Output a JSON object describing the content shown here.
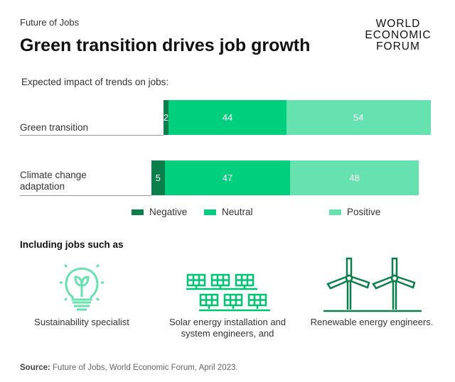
{
  "header": {
    "kicker": "Future of Jobs",
    "title": "Green transition drives job growth",
    "logo": [
      "WORLD",
      "ECONOMIC",
      "FORUM"
    ]
  },
  "chart_data": {
    "type": "bar",
    "orientation": "horizontal-stacked-diverging",
    "subtitle": "Expected impact of trends on jobs:",
    "categories": [
      "Green transition",
      "Climate change adaptation"
    ],
    "series": [
      {
        "name": "Negative",
        "values": [
          2,
          5
        ],
        "color": "#0a7f4c"
      },
      {
        "name": "Neutral",
        "values": [
          44,
          47
        ],
        "color": "#00d07e"
      },
      {
        "name": "Positive",
        "values": [
          54,
          48
        ],
        "color": "#66e2b0"
      }
    ],
    "legend_placement": "bottom",
    "grid": false
  },
  "jobs": {
    "heading": "Including jobs such as",
    "items": [
      {
        "label": "Sustainability specialist",
        "icon": "lightbulb-plant-icon"
      },
      {
        "label": "Solar energy installation and system engineers, and",
        "icon": "solar-panels-icon"
      },
      {
        "label": "Renewable energy engineers.",
        "icon": "wind-turbines-icon"
      }
    ]
  },
  "source": {
    "label": "Source:",
    "text": " Future of Jobs, World Economic Forum, April 2023."
  }
}
